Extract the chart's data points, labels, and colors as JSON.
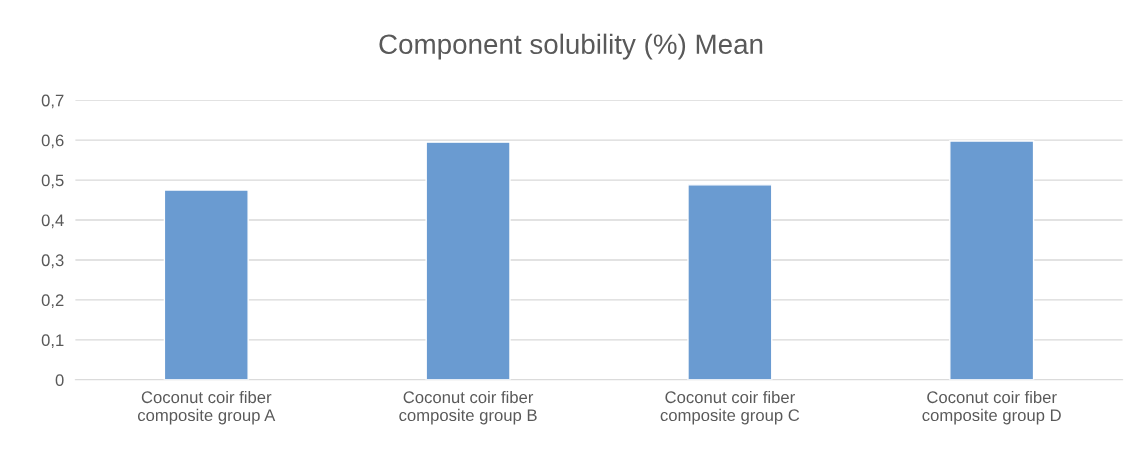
{
  "chart_data": {
    "type": "bar",
    "title": "Component solubility (%) Mean",
    "categories": [
      "Coconut coir fiber\ncomposite group A",
      "Coconut coir fiber\ncomposite group B",
      "Coconut coir fiber\ncomposite group C",
      "Coconut coir fiber\ncomposite group D"
    ],
    "values": [
      0.475,
      0.595,
      0.488,
      0.598
    ],
    "color": "#6a9bd1",
    "ylim": [
      0,
      0.7
    ],
    "yticks": [
      0,
      {
        "value": 0.1,
        "label": "0,1"
      },
      {
        "value": 0.2,
        "label": "0,2"
      },
      {
        "value": 0.3,
        "label": "0,3"
      },
      {
        "value": 0.4,
        "label": "0,4"
      },
      {
        "value": 0.5,
        "label": "0,5"
      },
      {
        "value": 0.6,
        "label": "0,6"
      },
      {
        "value": 0.7,
        "label": "0,7"
      }
    ],
    "grid": "y"
  }
}
